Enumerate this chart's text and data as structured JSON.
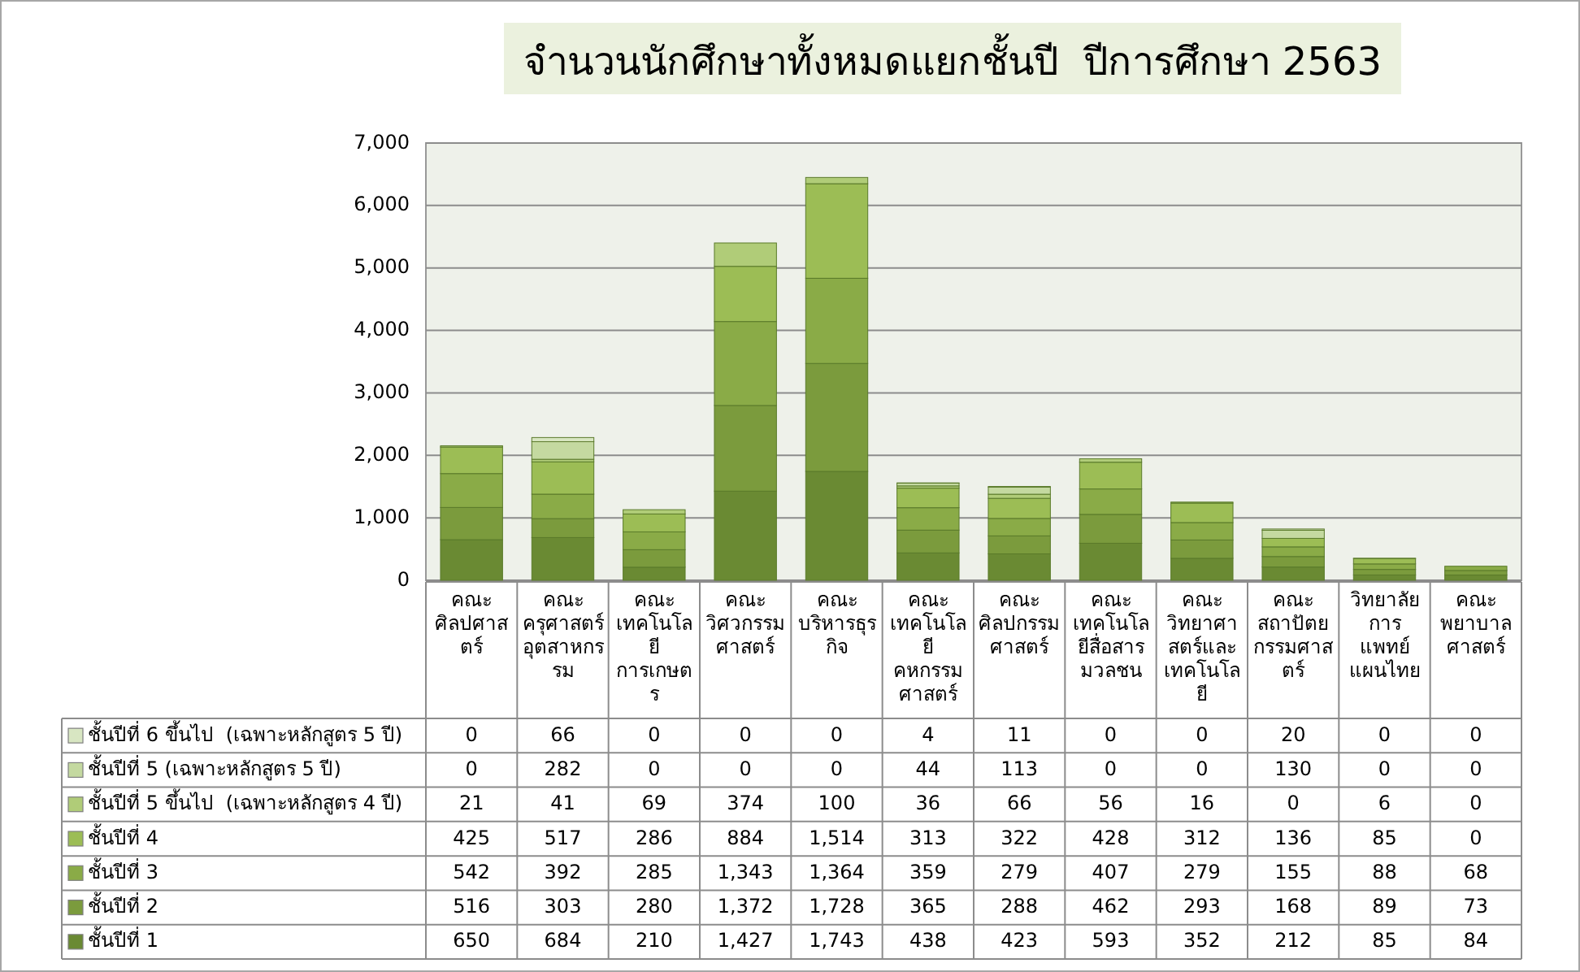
{
  "chart_data": {
    "type": "bar",
    "stacked": true,
    "title": "จำนวนนักศึกษาทั้งหมดแยกชั้นปี  ปีการศึกษา 2563",
    "categories": [
      "คณะศิลปศาสตร์",
      "คณะครุศาสตร์อุตสาหกรรม",
      "คณะเทคโนโลยีการเกษตร",
      "คณะวิศวกรรมศาสตร์",
      "คณะบริหารธุรกิจ",
      "คณะเทคโนโลยีคหกรรมศาสตร์",
      "คณะศิลปกรรมศาสตร์",
      "คณะเทคโนโลยีสื่อสารมวลชน",
      "คณะวิทยาศาสตร์และเทคโนโลยี",
      "คณะสถาปัตยกรรมศาสตร์",
      "วิทยาลัยการแพทย์แผนไทย",
      "คณะพยาบาลศาสตร์"
    ],
    "series": [
      {
        "name": "ชั้นปีที่ 1",
        "color": "#6a8a33",
        "values": [
          650,
          684,
          210,
          1427,
          1743,
          438,
          423,
          593,
          352,
          212,
          85,
          84
        ],
        "value_labels": [
          "650",
          "684",
          "210",
          "1,427",
          "1,743",
          "438",
          "423",
          "593",
          "352",
          "212",
          "85",
          "84"
        ]
      },
      {
        "name": "ชั้นปีที่ 2",
        "color": "#7b9b3d",
        "values": [
          516,
          303,
          280,
          1372,
          1728,
          365,
          288,
          462,
          293,
          168,
          89,
          73
        ],
        "value_labels": [
          "516",
          "303",
          "280",
          "1,372",
          "1,728",
          "365",
          "288",
          "462",
          "293",
          "168",
          "89",
          "73"
        ]
      },
      {
        "name": "ชั้นปีที่ 3",
        "color": "#8aab47",
        "values": [
          542,
          392,
          285,
          1343,
          1364,
          359,
          279,
          407,
          279,
          155,
          88,
          68
        ],
        "value_labels": [
          "542",
          "392",
          "285",
          "1,343",
          "1,364",
          "359",
          "279",
          "407",
          "279",
          "155",
          "88",
          "68"
        ]
      },
      {
        "name": "ชั้นปีที่ 4",
        "color": "#9cbd55",
        "values": [
          425,
          517,
          286,
          884,
          1514,
          313,
          322,
          428,
          312,
          136,
          85,
          0
        ],
        "value_labels": [
          "425",
          "517",
          "286",
          "884",
          "1,514",
          "313",
          "322",
          "428",
          "312",
          "136",
          "85",
          "0"
        ]
      },
      {
        "name": "ชั้นปีที่ 5 ขึ้นไป  (เฉพาะหลักสูตร 4 ปี)",
        "color": "#b0cc78",
        "values": [
          21,
          41,
          69,
          374,
          100,
          36,
          66,
          56,
          16,
          0,
          6,
          0
        ],
        "value_labels": [
          "21",
          "41",
          "69",
          "374",
          "100",
          "36",
          "66",
          "56",
          "16",
          "0",
          "6",
          "0"
        ]
      },
      {
        "name": "ชั้นปีที่ 5 (เฉพาะหลักสูตร 5 ปี)",
        "color": "#c4d9a0",
        "values": [
          0,
          282,
          0,
          0,
          0,
          44,
          113,
          0,
          0,
          130,
          0,
          0
        ],
        "value_labels": [
          "0",
          "282",
          "0",
          "0",
          "0",
          "44",
          "113",
          "0",
          "0",
          "130",
          "0",
          "0"
        ]
      },
      {
        "name": "ชั้นปีที่ 6 ขึ้นไป  (เฉพาะหลักสูตร 5 ปี)",
        "color": "#d8e6c2",
        "values": [
          0,
          66,
          0,
          0,
          0,
          4,
          11,
          0,
          0,
          20,
          0,
          0
        ],
        "value_labels": [
          "0",
          "66",
          "0",
          "0",
          "0",
          "4",
          "11",
          "0",
          "0",
          "20",
          "0",
          "0"
        ]
      }
    ],
    "ylim": [
      0,
      7000
    ],
    "yticks": [
      0,
      {
        "value": 1000,
        "label": "1,000"
      },
      {
        "value": 2000,
        "label": "2,000"
      },
      {
        "value": 3000,
        "label": "3,000"
      },
      {
        "value": 4000,
        "label": "4,000"
      },
      {
        "value": 5000,
        "label": "5,000"
      },
      {
        "value": 6000,
        "label": "6,000"
      },
      {
        "value": 7000,
        "label": "7,000"
      }
    ],
    "grid": "y",
    "legend": "bottom"
  }
}
